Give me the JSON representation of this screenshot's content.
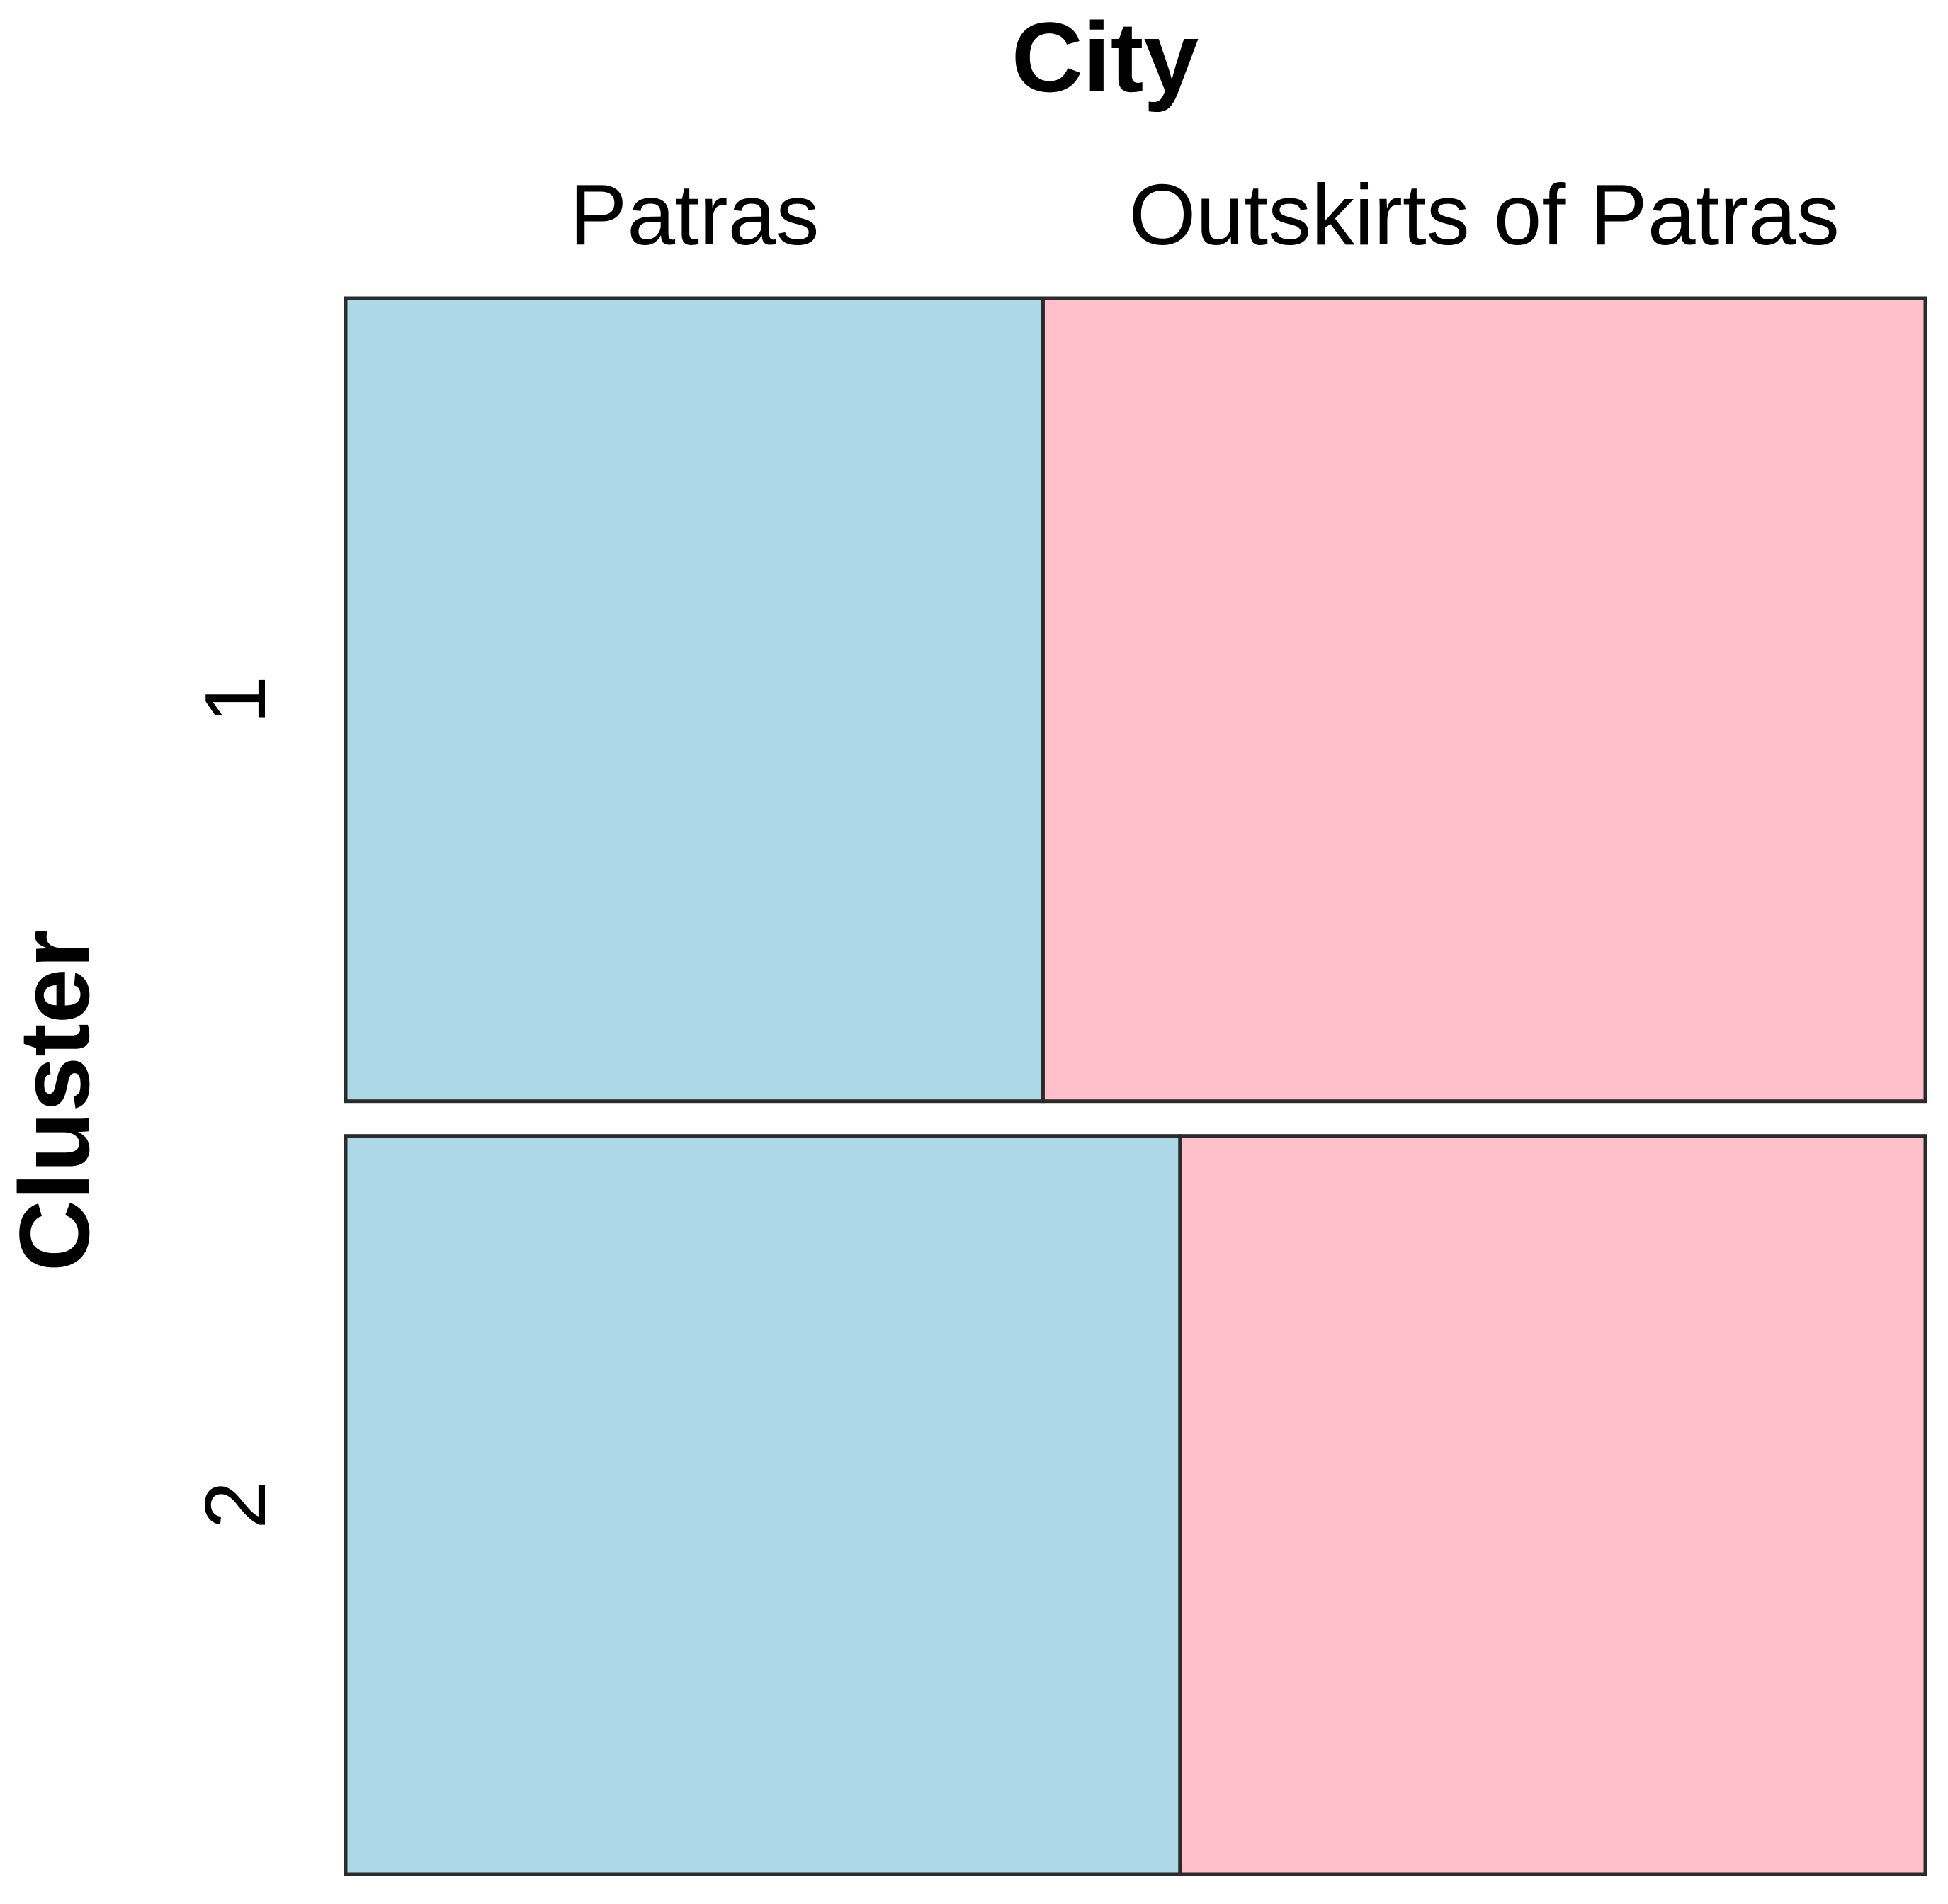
{
  "chart_data": {
    "type": "mosaic",
    "title": "City",
    "y_label": "Cluster",
    "categories": [
      "1",
      "2"
    ],
    "series": [
      {
        "name": "Patras",
        "color": "#add8e6",
        "values": [
          23.0,
          25.3
        ]
      },
      {
        "name": "Outskirts of Patras",
        "color": "#ffc0cb",
        "values": [
          29.1,
          22.6
        ]
      }
    ]
  }
}
